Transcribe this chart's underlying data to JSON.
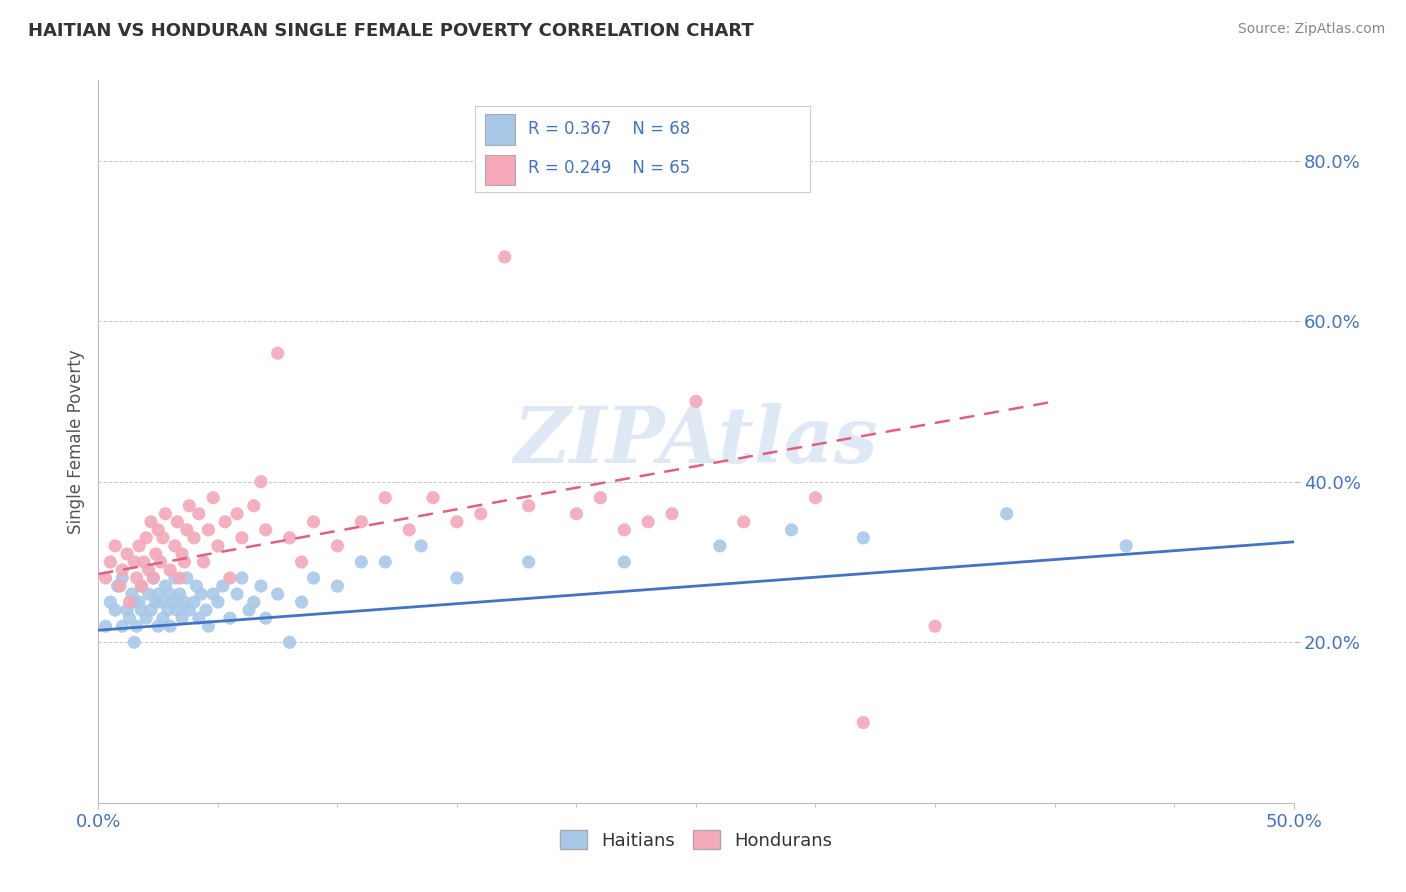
{
  "title": "HAITIAN VS HONDURAN SINGLE FEMALE POVERTY CORRELATION CHART",
  "source": "Source: ZipAtlas.com",
  "ylabel": "Single Female Poverty",
  "xlim": [
    0.0,
    0.5
  ],
  "ylim": [
    0.0,
    0.9
  ],
  "ytick_positions": [
    0.2,
    0.4,
    0.6,
    0.8
  ],
  "xtick_positions": [
    0.0,
    0.5
  ],
  "haitians_color": "#a8c8e8",
  "hondurans_color": "#f4a8b8",
  "haitians_line_color": "#4472c4",
  "hondurans_line_color": "#e06080",
  "legend_r_haitian": "R = 0.367",
  "legend_n_haitian": "N = 68",
  "legend_r_honduran": "R = 0.249",
  "legend_n_honduran": "N = 65",
  "watermark": "ZIPAtlas",
  "background_color": "#ffffff",
  "grid_color": "#c8c8c8",
  "title_color": "#333333",
  "label_color": "#4472c4",
  "haitians_x": [
    0.003,
    0.005,
    0.007,
    0.008,
    0.01,
    0.01,
    0.012,
    0.013,
    0.014,
    0.015,
    0.015,
    0.016,
    0.017,
    0.018,
    0.018,
    0.02,
    0.021,
    0.022,
    0.023,
    0.024,
    0.025,
    0.025,
    0.026,
    0.027,
    0.028,
    0.029,
    0.03,
    0.03,
    0.031,
    0.032,
    0.033,
    0.034,
    0.035,
    0.036,
    0.037,
    0.038,
    0.04,
    0.041,
    0.042,
    0.043,
    0.045,
    0.046,
    0.048,
    0.05,
    0.052,
    0.055,
    0.058,
    0.06,
    0.063,
    0.065,
    0.068,
    0.07,
    0.075,
    0.08,
    0.085,
    0.09,
    0.1,
    0.11,
    0.12,
    0.135,
    0.15,
    0.18,
    0.22,
    0.26,
    0.29,
    0.32,
    0.38,
    0.43
  ],
  "haitians_y": [
    0.22,
    0.25,
    0.24,
    0.27,
    0.22,
    0.28,
    0.24,
    0.23,
    0.26,
    0.2,
    0.25,
    0.22,
    0.25,
    0.24,
    0.27,
    0.23,
    0.26,
    0.24,
    0.28,
    0.25,
    0.22,
    0.26,
    0.25,
    0.23,
    0.27,
    0.24,
    0.22,
    0.26,
    0.25,
    0.28,
    0.24,
    0.26,
    0.23,
    0.25,
    0.28,
    0.24,
    0.25,
    0.27,
    0.23,
    0.26,
    0.24,
    0.22,
    0.26,
    0.25,
    0.27,
    0.23,
    0.26,
    0.28,
    0.24,
    0.25,
    0.27,
    0.23,
    0.26,
    0.2,
    0.25,
    0.28,
    0.27,
    0.3,
    0.3,
    0.32,
    0.28,
    0.3,
    0.3,
    0.32,
    0.34,
    0.33,
    0.36,
    0.32
  ],
  "hondurans_x": [
    0.003,
    0.005,
    0.007,
    0.009,
    0.01,
    0.012,
    0.013,
    0.015,
    0.016,
    0.017,
    0.018,
    0.019,
    0.02,
    0.021,
    0.022,
    0.023,
    0.024,
    0.025,
    0.026,
    0.027,
    0.028,
    0.03,
    0.032,
    0.033,
    0.034,
    0.035,
    0.036,
    0.037,
    0.038,
    0.04,
    0.042,
    0.044,
    0.046,
    0.048,
    0.05,
    0.053,
    0.055,
    0.058,
    0.06,
    0.065,
    0.068,
    0.07,
    0.075,
    0.08,
    0.085,
    0.09,
    0.1,
    0.11,
    0.12,
    0.13,
    0.14,
    0.15,
    0.16,
    0.17,
    0.18,
    0.2,
    0.21,
    0.22,
    0.23,
    0.24,
    0.25,
    0.27,
    0.3,
    0.32,
    0.35
  ],
  "hondurans_y": [
    0.28,
    0.3,
    0.32,
    0.27,
    0.29,
    0.31,
    0.25,
    0.3,
    0.28,
    0.32,
    0.27,
    0.3,
    0.33,
    0.29,
    0.35,
    0.28,
    0.31,
    0.34,
    0.3,
    0.33,
    0.36,
    0.29,
    0.32,
    0.35,
    0.28,
    0.31,
    0.3,
    0.34,
    0.37,
    0.33,
    0.36,
    0.3,
    0.34,
    0.38,
    0.32,
    0.35,
    0.28,
    0.36,
    0.33,
    0.37,
    0.4,
    0.34,
    0.56,
    0.33,
    0.3,
    0.35,
    0.32,
    0.35,
    0.38,
    0.34,
    0.38,
    0.35,
    0.36,
    0.68,
    0.37,
    0.36,
    0.38,
    0.34,
    0.35,
    0.36,
    0.5,
    0.35,
    0.38,
    0.1,
    0.22
  ],
  "haitian_trend": [
    0.215,
    0.325
  ],
  "honduran_trend": [
    0.285,
    0.5
  ]
}
